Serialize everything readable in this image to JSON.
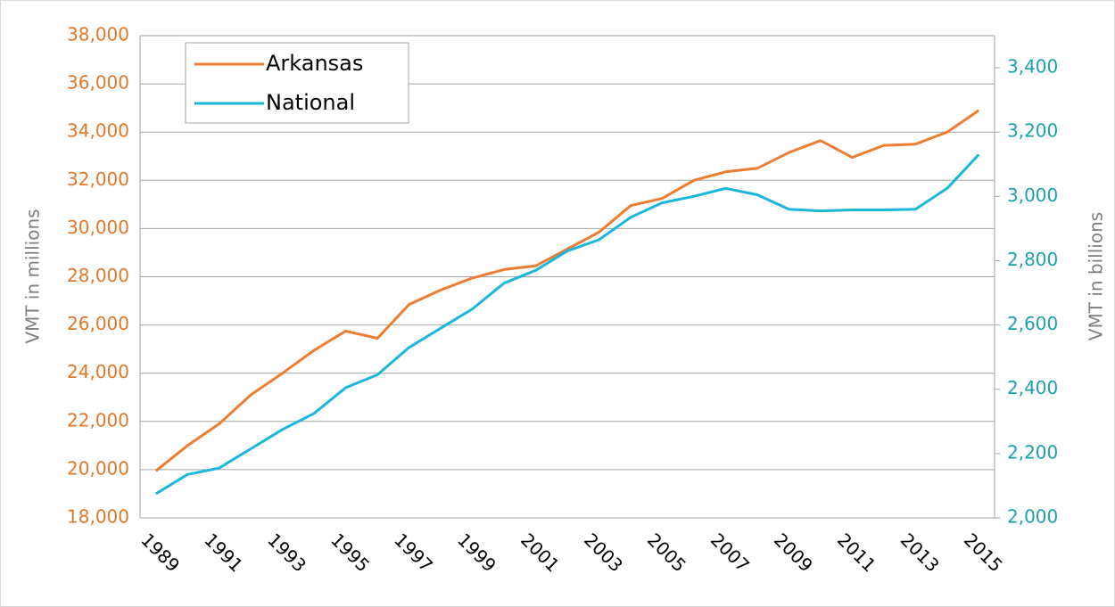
{
  "chart_data": {
    "type": "line",
    "categories": [
      "1989",
      null,
      "1991",
      null,
      "1993",
      null,
      "1995",
      null,
      "1997",
      null,
      "1999",
      null,
      "2001",
      null,
      "2003",
      null,
      "2005",
      null,
      "2007",
      null,
      "2009",
      null,
      "2011",
      null,
      "2013",
      null,
      "2015"
    ],
    "series": [
      {
        "name": "Arkansas",
        "color": "#ed7d31",
        "values": [
          19950,
          21000,
          21900,
          23100,
          24000,
          24950,
          25750,
          25450,
          26850,
          27450,
          27950,
          28300,
          28450,
          29150,
          29850,
          30950,
          31250,
          32000,
          32350,
          32500,
          33150,
          33650,
          32950,
          33450,
          33500,
          34000,
          34900
        ]
      },
      {
        "name": "National",
        "color": "#1ab7dd",
        "axis": "y2",
        "values": [
          2075,
          2135,
          2155,
          2215,
          2275,
          2325,
          2405,
          2445,
          2530,
          2590,
          2650,
          2730,
          2770,
          2830,
          2865,
          2935,
          2980,
          3000,
          3025,
          3005,
          2960,
          2955,
          2958,
          2958,
          2960,
          3025,
          3130
        ]
      }
    ],
    "ylabel": "VMT in millions",
    "y2label": "VMT in billions",
    "ylim": [
      18000,
      38000
    ],
    "yticks": [
      {
        "value": 18000,
        "label": "18,000"
      },
      {
        "value": 20000,
        "label": "20,000"
      },
      {
        "value": 22000,
        "label": "22,000"
      },
      {
        "value": 24000,
        "label": "24,000"
      },
      {
        "value": 26000,
        "label": "26,000"
      },
      {
        "value": 28000,
        "label": "28,000"
      },
      {
        "value": 30000,
        "label": "30,000"
      },
      {
        "value": 32000,
        "label": "32,000"
      },
      {
        "value": 34000,
        "label": "34,000"
      },
      {
        "value": 36000,
        "label": "36,000"
      },
      {
        "value": 38000,
        "label": "38,000"
      }
    ],
    "y2lim": [
      2000,
      3500
    ],
    "y2ticks": [
      {
        "value": 2000,
        "label": "2,000"
      },
      {
        "value": 2200,
        "label": "2,200"
      },
      {
        "value": 2400,
        "label": "2,400"
      },
      {
        "value": 2600,
        "label": "2,600"
      },
      {
        "value": 2800,
        "label": "2,800"
      },
      {
        "value": 3000,
        "label": "3,000"
      },
      {
        "value": 3200,
        "label": "3,200"
      },
      {
        "value": 3400,
        "label": "3,400"
      }
    ],
    "ytick_color": "#e0782a",
    "y2tick_color": "#1c9fae",
    "grid": true,
    "legend": "upper left"
  }
}
